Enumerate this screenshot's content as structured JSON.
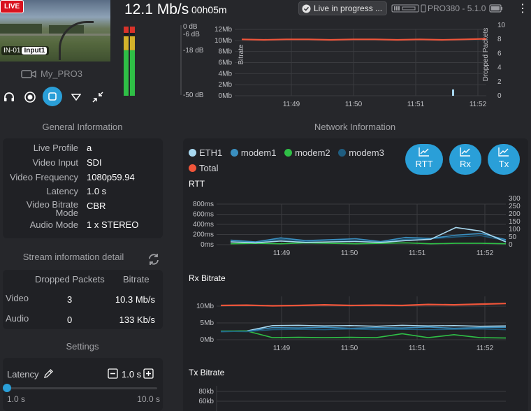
{
  "preview": {
    "live_label": "LIVE",
    "input_name": "IN-01",
    "input_tag": "Input1",
    "device_name": "My_PRO3"
  },
  "topbar": {
    "bitrate": "12.1 Mb/s",
    "duration": "00h05m",
    "status": "Live in progress ...",
    "model": "PRO380 - 5.1.0"
  },
  "audio_meter": {
    "labels": [
      "0 dB",
      "-6 dB",
      "-18 dB",
      "-50 dB"
    ],
    "levels": [
      0.86,
      0.86
    ]
  },
  "top_chart": {
    "y_left": [
      "12Mb",
      "10Mb",
      "8Mb",
      "6Mb",
      "4Mb",
      "2Mb",
      "0Mb"
    ],
    "y_right": [
      "10",
      "8",
      "6",
      "4",
      "2",
      "0"
    ],
    "y_left_title": "Bitrate",
    "y_right_title": "Dropped Packets",
    "x": [
      "11:49",
      "11:50",
      "11:51",
      "11:52"
    ]
  },
  "general": {
    "title": "General Information",
    "rows": [
      {
        "k": "Live Profile",
        "v": "a"
      },
      {
        "k": "Video Input",
        "v": "SDI"
      },
      {
        "k": "Video Frequency",
        "v": "1080p59.94"
      },
      {
        "k": "Latency",
        "v": "1.0 s"
      },
      {
        "k": "Video Bitrate Mode",
        "v": "CBR"
      },
      {
        "k": "Audio Mode",
        "v": "1 x STEREO"
      }
    ]
  },
  "stream": {
    "title": "Stream information detail",
    "headers": [
      "Dropped Packets",
      "Bitrate"
    ],
    "rows": [
      {
        "name": "Video",
        "dropped": "3",
        "bitrate": "10.3 Mb/s"
      },
      {
        "name": "Audio",
        "dropped": "0",
        "bitrate": "133 Kb/s"
      }
    ]
  },
  "settings": {
    "title": "Settings",
    "latency_label": "Latency",
    "latency_value": "1.0 s",
    "min": "1.0 s",
    "max": "10.0 s",
    "slider_fraction": 0.0
  },
  "network": {
    "title": "Network Information",
    "legend": [
      {
        "name": "ETH1",
        "color": "#a8d8f0"
      },
      {
        "name": "modem1",
        "color": "#3a8fc0"
      },
      {
        "name": "modem2",
        "color": "#2fbf46"
      },
      {
        "name": "modem3",
        "color": "#1f5d80"
      },
      {
        "name": "Total",
        "color": "#f0553a"
      }
    ],
    "buttons": [
      "RTT",
      "Rx",
      "Tx"
    ],
    "rtt": {
      "title": "RTT",
      "y_left": [
        "800ms",
        "600ms",
        "400ms",
        "200ms",
        "0ms"
      ],
      "y_right": [
        "300",
        "250",
        "200",
        "150",
        "100",
        "50",
        "0"
      ],
      "x": [
        "11:49",
        "11:50",
        "11:51",
        "11:52"
      ]
    },
    "rx": {
      "title": "Rx Bitrate",
      "y_left": [
        "10Mb",
        "5Mb",
        "0Mb"
      ],
      "x": [
        "11:49",
        "11:50",
        "11:51",
        "11:52"
      ]
    },
    "tx": {
      "title": "Tx Bitrate",
      "y_left": [
        "80kb",
        "60kb"
      ]
    }
  },
  "chart_data": [
    {
      "type": "line",
      "title": "",
      "x": [
        "11:48:40",
        "11:49",
        "11:49:20",
        "11:49:40",
        "11:50",
        "11:50:20",
        "11:50:40",
        "11:51",
        "11:51:20",
        "11:51:40",
        "11:52",
        "11:52:15"
      ],
      "series": [
        {
          "name": "Bitrate",
          "values": [
            10.2,
            10.1,
            10.2,
            10.2,
            10.1,
            10.2,
            10.2,
            10.1,
            10.2,
            10.1,
            10.2,
            10.3
          ]
        }
      ],
      "xlabel": "",
      "ylabel": "Bitrate",
      "ylim": [
        0,
        12
      ]
    },
    {
      "type": "line",
      "title": "RTT",
      "x": [
        "11:48:40",
        "11:49",
        "11:49:20",
        "11:49:40",
        "11:50",
        "11:50:20",
        "11:50:40",
        "11:51",
        "11:51:20",
        "11:51:40",
        "11:52",
        "11:52:15"
      ],
      "series": [
        {
          "name": "ETH1",
          "values": [
            60,
            40,
            80,
            50,
            60,
            70,
            50,
            90,
            120,
            380,
            300,
            60
          ]
        },
        {
          "name": "modem1",
          "values": [
            100,
            60,
            150,
            90,
            110,
            130,
            70,
            160,
            140,
            210,
            250,
            110
          ]
        },
        {
          "name": "modem2",
          "values": [
            20,
            30,
            20,
            40,
            30,
            20,
            30,
            40,
            20,
            30,
            30,
            20
          ]
        },
        {
          "name": "modem3",
          "values": [
            80,
            50,
            120,
            70,
            100,
            90,
            60,
            120,
            130,
            170,
            200,
            90
          ]
        }
      ],
      "ylim": [
        0,
        900
      ]
    },
    {
      "type": "line",
      "title": "Rx Bitrate",
      "x": [
        "11:48:40",
        "11:49",
        "11:49:20",
        "11:49:40",
        "11:50",
        "11:50:20",
        "11:50:40",
        "11:51",
        "11:51:20",
        "11:51:40",
        "11:52",
        "11:52:15"
      ],
      "series": [
        {
          "name": "Total",
          "values": [
            10.2,
            10.3,
            10.1,
            10.2,
            10.4,
            10.2,
            10.3,
            10.2,
            10.5,
            10.4,
            10.6,
            10.8
          ]
        },
        {
          "name": "ETH1",
          "values": [
            2.5,
            2.6,
            4.2,
            4.3,
            4.1,
            4.2,
            4.0,
            4.3,
            4.1,
            4.2,
            4.0,
            4.1
          ]
        },
        {
          "name": "modem1",
          "values": [
            2.4,
            2.5,
            3.6,
            3.5,
            3.7,
            3.4,
            3.6,
            3.5,
            3.8,
            3.4,
            3.6,
            3.7
          ]
        },
        {
          "name": "modem2",
          "values": [
            2.6,
            2.6,
            0.6,
            0.7,
            0.6,
            0.7,
            0.6,
            1.8,
            0.6,
            1.5,
            0.6,
            0.5
          ]
        },
        {
          "name": "modem3",
          "values": [
            2.5,
            2.4,
            3.0,
            3.1,
            3.0,
            3.2,
            3.0,
            3.1,
            3.0,
            3.1,
            3.2,
            3.0
          ]
        }
      ],
      "ylim": [
        0,
        12
      ]
    }
  ]
}
